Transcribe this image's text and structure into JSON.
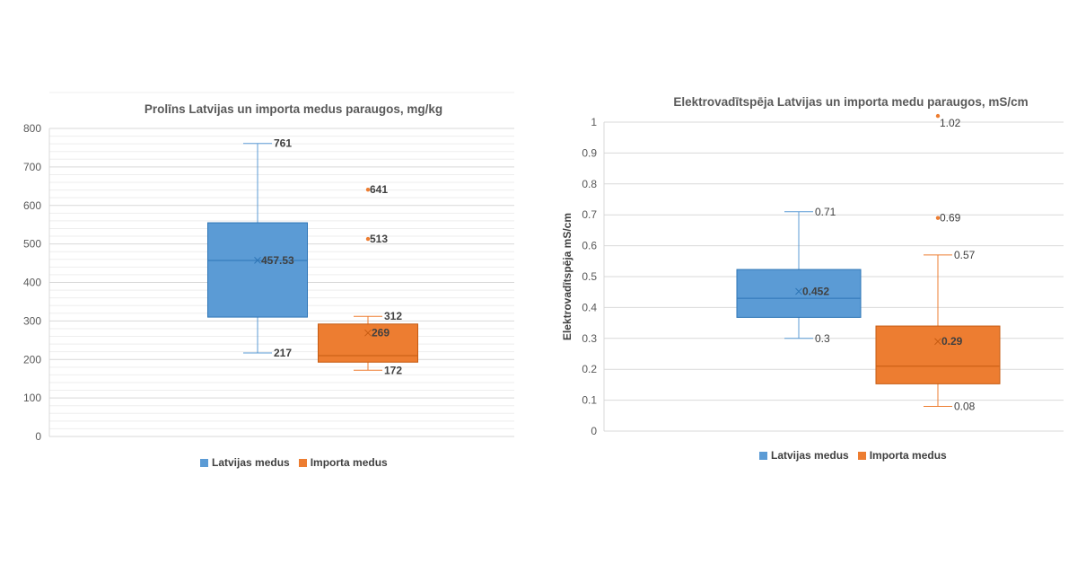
{
  "colors": {
    "blue": "#5b9bd5",
    "blue_dark": "#2e75b6",
    "orange": "#ed7d31",
    "orange_dark": "#c55a11",
    "red": "#e00000",
    "grid": "#d9d9d9",
    "text": "#404040"
  },
  "chart_data": [
    {
      "type": "box",
      "title": "Prolīns Latvijas un importa medus paraugos, mg/kg",
      "xlabel": "",
      "ylabel": "",
      "ylim": [
        0,
        800
      ],
      "yticks": [
        0,
        100,
        200,
        300,
        400,
        500,
        600,
        700,
        800
      ],
      "ytick_labels": [
        "0",
        "100",
        "200",
        "300",
        "400",
        "500",
        "600",
        "700",
        "800"
      ],
      "minor_gridlines": true,
      "legend": [
        "Latvijas medus",
        "Importa medus"
      ],
      "series": [
        {
          "name": "Latvijas medus",
          "min": 217,
          "q1": 310,
          "median": 457,
          "mean": 457.53,
          "q3": 555,
          "max": 761,
          "outliers": [],
          "labels": {
            "max": "761",
            "mean": "457.53",
            "min": "217"
          }
        },
        {
          "name": "Importa medus",
          "min": 172,
          "q1": 193,
          "median": 210,
          "mean": 269,
          "q3": 292,
          "max": 312,
          "outliers": [
            641,
            513
          ],
          "labels": {
            "max": "312",
            "mean": "269",
            "min": "172",
            "outliers": [
              "641",
              "513"
            ]
          }
        }
      ]
    },
    {
      "type": "box",
      "title": "Elektrovadītspēja Latvijas un importa medu paraugos, mS/cm",
      "xlabel": "",
      "ylabel": "Elektrovadītspēja mS/cm",
      "ylim": [
        0,
        1
      ],
      "yticks": [
        0,
        0.1,
        0.2,
        0.3,
        0.4,
        0.5,
        0.6,
        0.7,
        0.8,
        0.9,
        1
      ],
      "ytick_labels": [
        "0",
        "0.1",
        "0.2",
        "0.3",
        "0.4",
        "0.5",
        "0.6",
        "0.7",
        "0.8",
        "0.9",
        "1"
      ],
      "minor_gridlines": false,
      "legend": [
        "Latvijas medus",
        "Importa medus"
      ],
      "series": [
        {
          "name": "Latvijas medus",
          "min": 0.3,
          "q1": 0.368,
          "median": 0.43,
          "mean": 0.452,
          "q3": 0.523,
          "max": 0.71,
          "outliers": [],
          "labels": {
            "max": "0.71",
            "mean": "0.452",
            "min": "0.3"
          }
        },
        {
          "name": "Importa medus",
          "min": 0.08,
          "q1": 0.153,
          "median": 0.21,
          "mean": 0.29,
          "q3": 0.34,
          "max": 0.57,
          "outliers": [
            1.02,
            0.69
          ],
          "labels": {
            "max": "0.57",
            "mean": "0.29",
            "min": "0.08",
            "outliers": [
              "1.02",
              "0.69"
            ]
          }
        }
      ]
    }
  ]
}
